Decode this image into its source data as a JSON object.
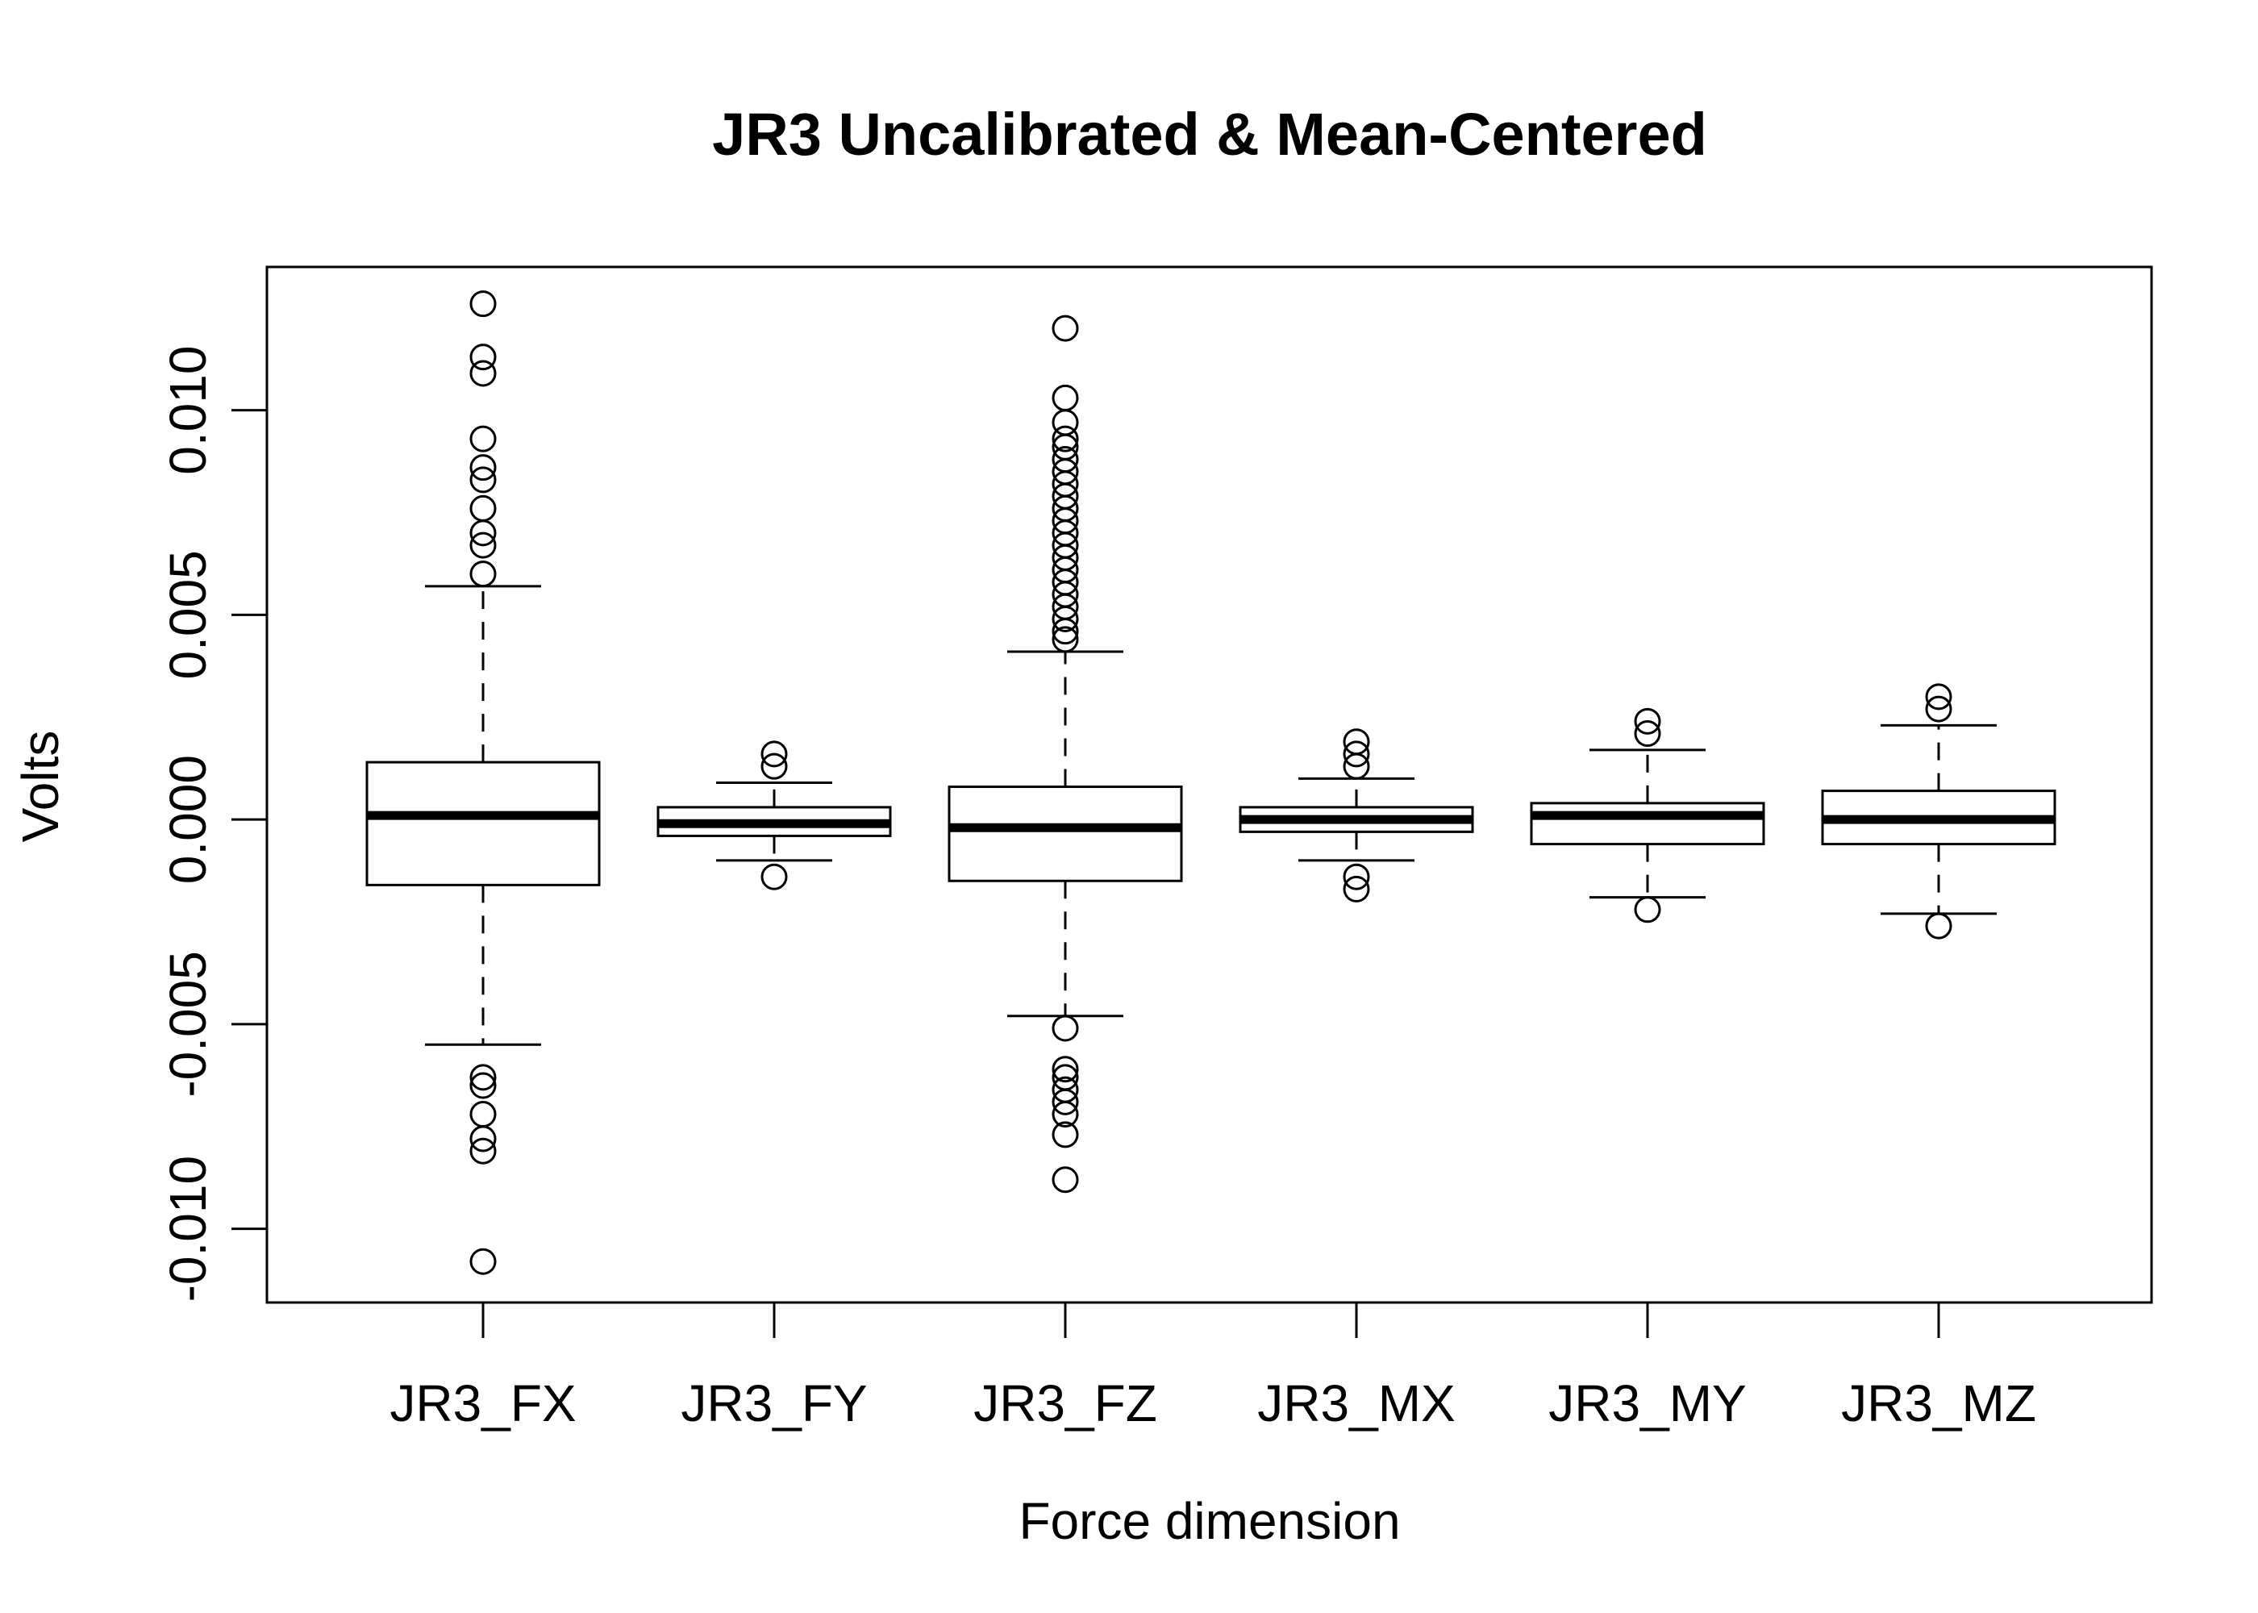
{
  "chart_data": {
    "type": "boxplot",
    "title": "JR3 Uncalibrated & Mean-Centered",
    "xlabel": "Force dimension",
    "ylabel": "Volts",
    "ylim": [
      -0.0118,
      0.0135
    ],
    "yticks": [
      -0.01,
      -0.005,
      0.0,
      0.005,
      0.01
    ],
    "ytick_labels": [
      "-0.010",
      "-0.005",
      "0.000",
      "0.005",
      "0.010"
    ],
    "grid": false,
    "categories": [
      "JR3_FX",
      "JR3_FY",
      "JR3_FZ",
      "JR3_MX",
      "JR3_MY",
      "JR3_MZ"
    ],
    "boxes": [
      {
        "name": "JR3_FX",
        "whisker_low": -0.0055,
        "q1": -0.0016,
        "median": 0.0001,
        "q3": 0.0014,
        "whisker_high": 0.0057,
        "outliers": [
          0.0126,
          0.0113,
          0.0109,
          0.0093,
          0.0086,
          0.0083,
          0.0076,
          0.007,
          0.0067,
          0.006,
          -0.0063,
          -0.0065,
          -0.0072,
          -0.0078,
          -0.0081,
          -0.0108
        ]
      },
      {
        "name": "JR3_FY",
        "whisker_low": -0.001,
        "q1": -0.0004,
        "median": -0.0001,
        "q3": 0.0003,
        "whisker_high": 0.0009,
        "outliers": [
          0.0016,
          0.0013,
          -0.0014
        ]
      },
      {
        "name": "JR3_FZ",
        "whisker_low": -0.0048,
        "q1": -0.0015,
        "median": -0.0002,
        "q3": 0.0008,
        "whisker_high": 0.0041,
        "outliers": [
          0.012,
          0.0103,
          0.0097,
          0.0093,
          0.0091,
          0.0088,
          0.0085,
          0.0082,
          0.0079,
          0.0076,
          0.0073,
          0.007,
          0.0067,
          0.0064,
          0.0061,
          0.0058,
          0.0055,
          0.0052,
          0.0049,
          0.0046,
          0.0044,
          -0.0051,
          -0.0061,
          -0.0063,
          -0.0066,
          -0.0069,
          -0.0072,
          -0.0077,
          -0.0088
        ]
      },
      {
        "name": "JR3_MX",
        "whisker_low": -0.001,
        "q1": -0.0003,
        "median": 0.0,
        "q3": 0.0003,
        "whisker_high": 0.001,
        "outliers": [
          0.0019,
          0.0016,
          0.0013,
          -0.0014,
          -0.0017
        ]
      },
      {
        "name": "JR3_MY",
        "whisker_low": -0.0019,
        "q1": -0.0006,
        "median": 0.0001,
        "q3": 0.0004,
        "whisker_high": 0.0017,
        "outliers": [
          0.0024,
          0.0021,
          -0.0022
        ]
      },
      {
        "name": "JR3_MZ",
        "whisker_low": -0.0023,
        "q1": -0.0006,
        "median": 0.0,
        "q3": 0.0007,
        "whisker_high": 0.0023,
        "outliers": [
          0.003,
          0.0027,
          -0.0026
        ]
      }
    ]
  }
}
